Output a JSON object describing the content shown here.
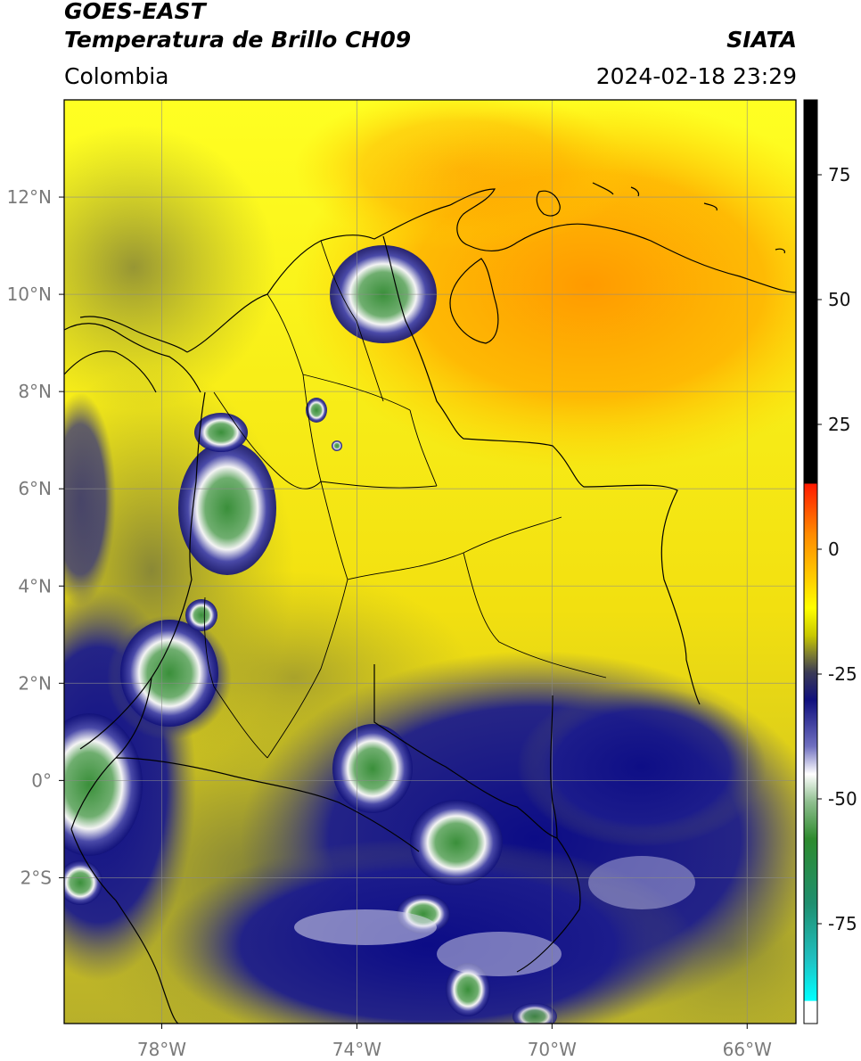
{
  "header": {
    "satellite": "GOES-EAST",
    "product": "Temperatura de Brillo CH09",
    "agency": "SIATA",
    "region": "Colombia",
    "timestamp": "2024-02-18 23:29"
  },
  "map": {
    "lon_range": [
      -80,
      -65
    ],
    "lat_range": [
      -5,
      14
    ],
    "lat_ticks": [
      {
        "value": 12,
        "label": "12°N"
      },
      {
        "value": 10,
        "label": "10°N"
      },
      {
        "value": 8,
        "label": "8°N"
      },
      {
        "value": 6,
        "label": "6°N"
      },
      {
        "value": 4,
        "label": "4°N"
      },
      {
        "value": 2,
        "label": "2°N"
      },
      {
        "value": 0,
        "label": "0°"
      },
      {
        "value": -2,
        "label": "2°S"
      }
    ],
    "lon_ticks": [
      {
        "value": -78,
        "label": "78°W"
      },
      {
        "value": -74,
        "label": "74°W"
      },
      {
        "value": -70,
        "label": "70°W"
      },
      {
        "value": -66,
        "label": "66°W"
      }
    ],
    "grid": true
  },
  "colorbar": {
    "range": [
      -95,
      90
    ],
    "ticks": [
      {
        "value": 75,
        "label": "75"
      },
      {
        "value": 50,
        "label": "50"
      },
      {
        "value": 25,
        "label": "25"
      },
      {
        "value": 0,
        "label": "0"
      },
      {
        "value": -25,
        "label": "-25"
      },
      {
        "value": -50,
        "label": "-50"
      },
      {
        "value": -75,
        "label": "-75"
      }
    ],
    "colors": {
      "black": "#000000",
      "red": "#ff2200",
      "orange": "#ff8c00",
      "yellow": "#ffff00",
      "olive": "#8a8a26",
      "navy": "#0a0a80",
      "white": "#ffffff",
      "green": "#2e8b2e",
      "teal": "#20b2aa",
      "cyan": "#00ffff"
    }
  }
}
